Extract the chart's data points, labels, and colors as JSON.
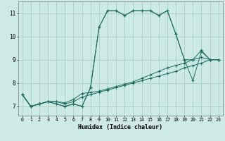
{
  "xlabel": "Humidex (Indice chaleur)",
  "bg_color": "#ceeae4",
  "grid_color": "#aacfc8",
  "line_color": "#1a6b60",
  "xlim": [
    -0.5,
    23.5
  ],
  "ylim": [
    6.6,
    11.5
  ],
  "xticks": [
    0,
    1,
    2,
    3,
    4,
    5,
    6,
    7,
    8,
    9,
    10,
    11,
    12,
    13,
    14,
    15,
    16,
    17,
    18,
    19,
    20,
    21,
    22,
    23
  ],
  "yticks": [
    7,
    8,
    9,
    10,
    11
  ],
  "curves": [
    {
      "x": [
        0,
        1,
        2,
        3,
        4,
        5,
        6,
        7,
        8,
        9,
        10,
        11,
        12,
        13,
        14,
        15,
        16,
        17,
        18,
        19,
        20,
        21,
        22,
        23
      ],
      "y": [
        7.5,
        7.0,
        7.1,
        7.2,
        7.1,
        7.0,
        7.1,
        7.0,
        7.8,
        10.4,
        11.1,
        11.1,
        10.9,
        11.1,
        11.1,
        11.1,
        10.9,
        11.1,
        10.1,
        9.0,
        9.0,
        9.4,
        9.0,
        9.0
      ]
    },
    {
      "x": [
        0,
        1,
        2,
        3,
        4,
        5,
        6,
        7,
        8,
        9,
        10,
        11,
        12,
        13,
        14,
        15,
        16,
        17,
        18,
        19,
        20,
        21,
        22,
        23
      ],
      "y": [
        7.5,
        7.0,
        7.1,
        7.2,
        7.1,
        7.0,
        7.1,
        7.0,
        7.8,
        10.4,
        11.1,
        11.1,
        10.9,
        11.1,
        11.1,
        11.1,
        10.9,
        11.1,
        10.1,
        9.0,
        8.1,
        9.35,
        9.0,
        9.0
      ]
    },
    {
      "x": [
        0,
        1,
        2,
        3,
        4,
        5,
        6,
        7,
        8,
        9,
        10,
        11,
        12,
        13,
        14,
        15,
        16,
        17,
        18,
        19,
        20,
        21,
        22,
        23
      ],
      "y": [
        7.5,
        7.0,
        7.1,
        7.2,
        7.2,
        7.15,
        7.3,
        7.55,
        7.6,
        7.65,
        7.75,
        7.85,
        7.95,
        8.05,
        8.2,
        8.35,
        8.5,
        8.65,
        8.75,
        8.85,
        9.0,
        9.1,
        9.0,
        9.0
      ]
    },
    {
      "x": [
        0,
        1,
        2,
        3,
        4,
        5,
        6,
        7,
        8,
        9,
        10,
        11,
        12,
        13,
        14,
        15,
        16,
        17,
        18,
        19,
        20,
        21,
        22,
        23
      ],
      "y": [
        7.5,
        7.0,
        7.1,
        7.2,
        7.2,
        7.1,
        7.2,
        7.4,
        7.5,
        7.6,
        7.7,
        7.8,
        7.9,
        8.0,
        8.1,
        8.2,
        8.3,
        8.4,
        8.5,
        8.65,
        8.75,
        8.85,
        9.0,
        9.0
      ]
    }
  ]
}
